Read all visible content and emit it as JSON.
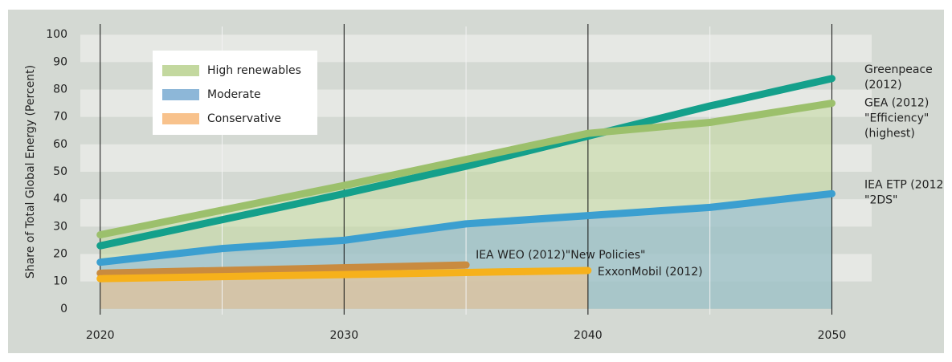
{
  "chart_data": {
    "type": "line",
    "ylabel": "Share of Total Global Energy (Percent)",
    "xlim": [
      2018,
      2051.5
    ],
    "ylim": [
      -3,
      103
    ],
    "xticks": [
      2020,
      2030,
      2040,
      2050
    ],
    "xminor": [
      2025,
      2035,
      2045
    ],
    "yticks": [
      0,
      10,
      20,
      30,
      40,
      50,
      60,
      70,
      80,
      90,
      100
    ],
    "legend": [
      {
        "name": "High renewables",
        "color": "#c3d89f"
      },
      {
        "name": "Moderate",
        "color": "#8db7d8"
      },
      {
        "name": "Conservative",
        "color": "#f8c28c"
      }
    ],
    "series": [
      {
        "label": [
          "Greenpeace",
          "(2012)"
        ],
        "color": "#14a08b",
        "group": 0,
        "area": false,
        "x": [
          2020,
          2030,
          2035,
          2040,
          2045,
          2050
        ],
        "values": [
          23,
          42,
          52,
          63,
          74,
          84
        ]
      },
      {
        "label": [
          "GEA (2012)",
          "\"Efficiency\"",
          "(highest)"
        ],
        "color": "#9cc06c",
        "group": 0,
        "area": true,
        "x": [
          2020,
          2030,
          2040,
          2045,
          2050
        ],
        "values": [
          27,
          45,
          64,
          68,
          75
        ]
      },
      {
        "label": [
          "IEA ETP (2012",
          "\"2DS\""
        ],
        "color": "#3b9fd0",
        "group": 1,
        "area": true,
        "x": [
          2020,
          2025,
          2030,
          2035,
          2040,
          2045,
          2050
        ],
        "values": [
          17,
          22,
          25,
          31,
          34,
          37,
          42
        ]
      },
      {
        "label": [
          "IEA WEO (2012)\"New Policies\""
        ],
        "color": "#c98b3f",
        "group": 2,
        "area": false,
        "x": [
          2020,
          2035
        ],
        "values": [
          13,
          16
        ]
      },
      {
        "label": [
          "ExxonMobil (2012)"
        ],
        "color": "#f6b11b",
        "group": 2,
        "area": true,
        "x": [
          2020,
          2040
        ],
        "values": [
          11,
          14
        ]
      }
    ]
  }
}
